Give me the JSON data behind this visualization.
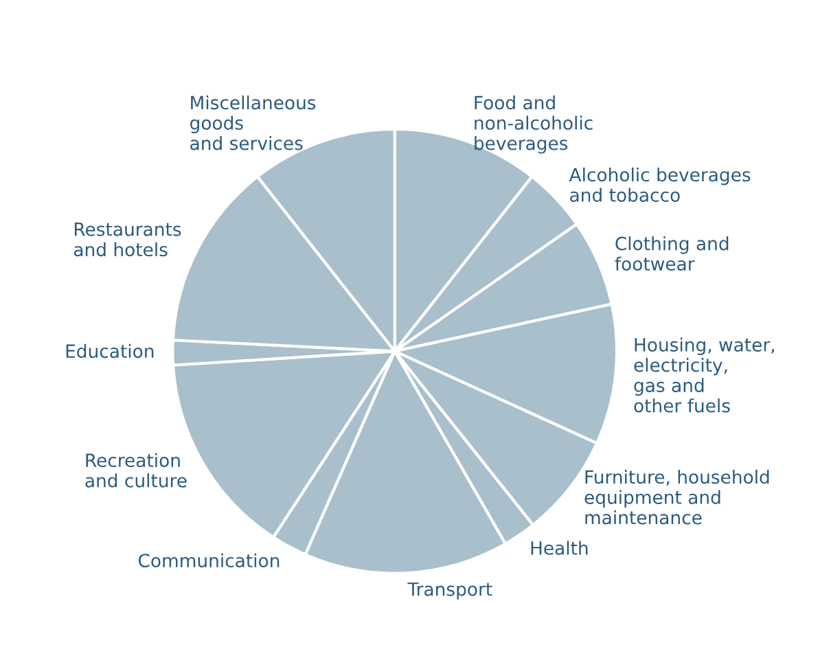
{
  "chart_data": {
    "type": "pie",
    "categories": [
      "Food and\nnon-alcoholic\nbeverages",
      "Alcoholic beverages\nand tobacco",
      "Clothing and\nfootwear",
      "Housing, water,\nelectricity,\ngas and\nother fuels",
      "Furniture, household\nequipment and\nmaintenance",
      "Health",
      "Transport",
      "Communication",
      "Recreation\nand culture",
      "Education",
      "Restaurants\nand hotels",
      "Miscellaneous\ngoods\nand services"
    ],
    "values": [
      10.6,
      4.7,
      6.3,
      10.2,
      7.5,
      2.4,
      14.9,
      2.6,
      14.8,
      1.8,
      13.6,
      10.6
    ],
    "colors": [
      "#a9bfcb",
      "#a9bfcb",
      "#a9bfcb",
      "#a9bfcb",
      "#a9bfcb",
      "#a9bfcb",
      "#a9bfcb",
      "#a9bfcb",
      "#a9bfcb",
      "#a9bfcb",
      "#a9bfcb",
      "#a9bfcb"
    ]
  }
}
